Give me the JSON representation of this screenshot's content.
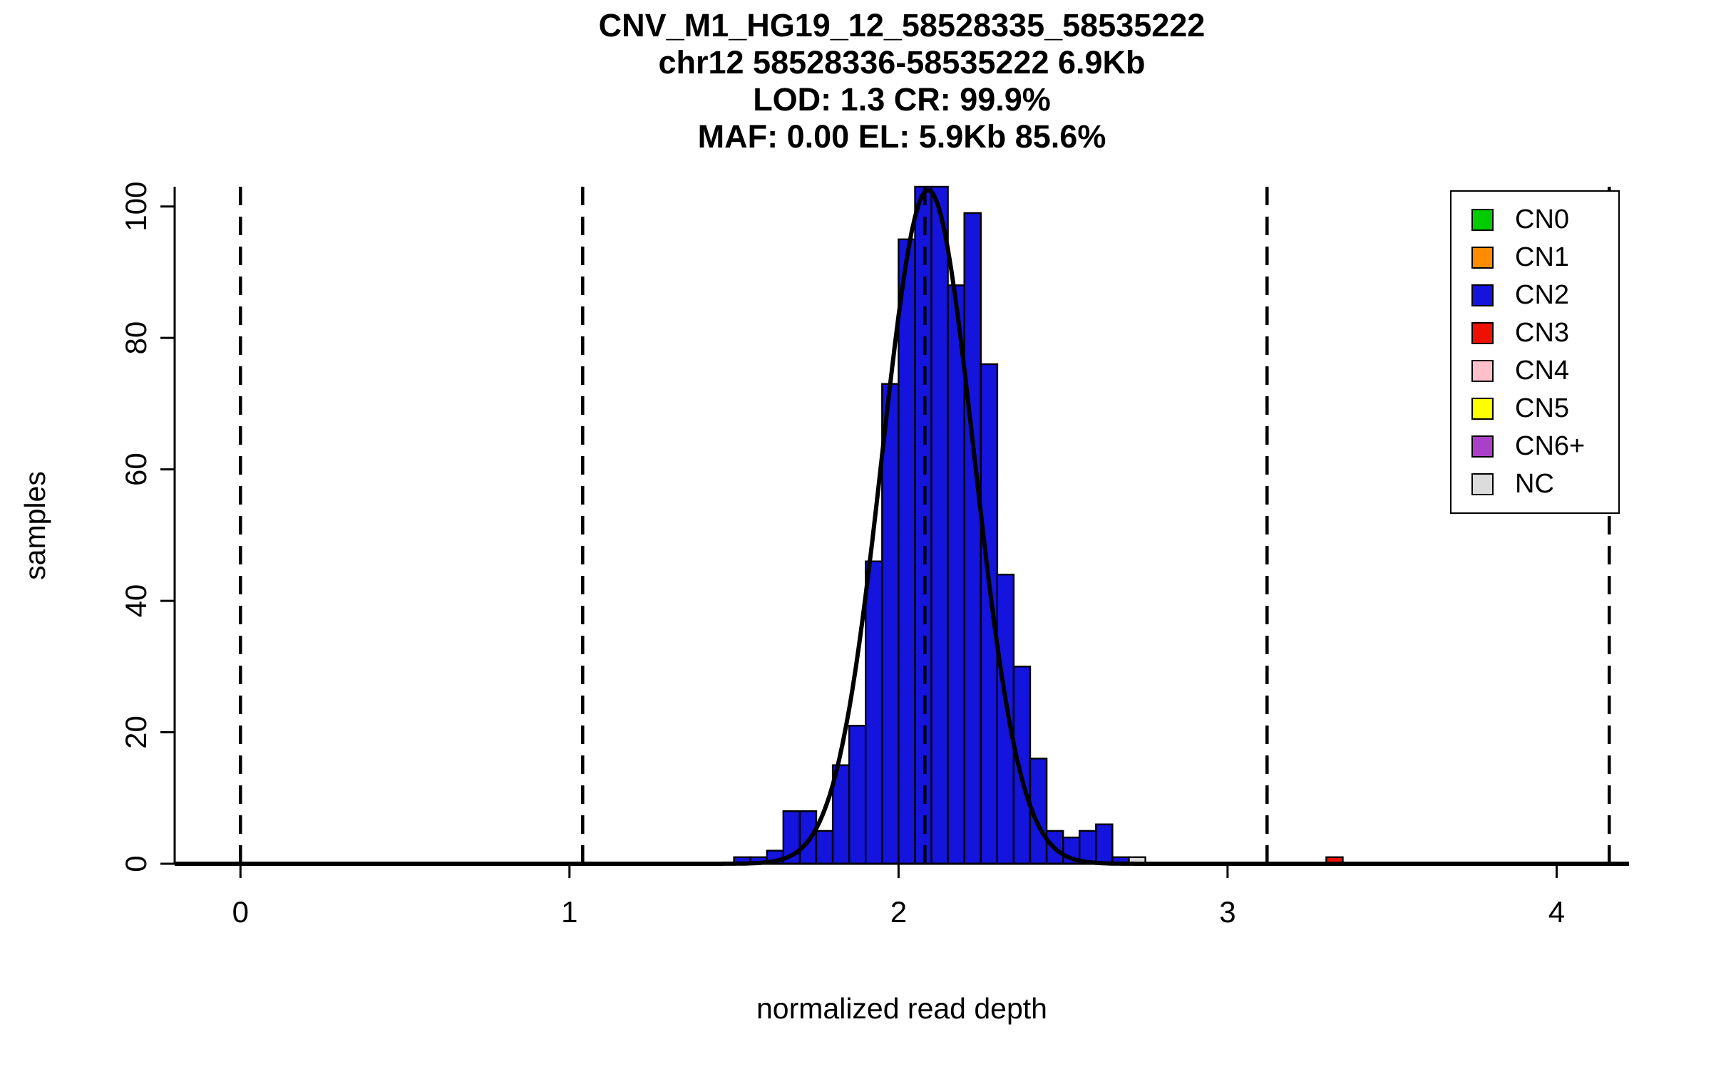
{
  "chart_data": {
    "type": "bar",
    "variant": "histogram-with-gaussian-fit",
    "title_lines": [
      "CNV_M1_HG19_12_58528335_58535222",
      "chr12 58528336-58535222 6.9Kb",
      "LOD: 1.3 CR: 99.9%",
      "MAF: 0.00 EL: 5.9Kb 85.6%"
    ],
    "xlabel": "normalized read depth",
    "ylabel": "samples",
    "xlim": [
      -0.2,
      4.22
    ],
    "ylim": [
      0,
      103
    ],
    "x_ticks": [
      0,
      1,
      2,
      3,
      4
    ],
    "y_ticks": [
      0,
      20,
      40,
      60,
      80,
      100
    ],
    "grid": false,
    "legend_position": "top-right",
    "bin_width": 0.05,
    "bars": [
      {
        "x": 1.5,
        "count": 1,
        "cn": "CN2"
      },
      {
        "x": 1.55,
        "count": 1,
        "cn": "CN2"
      },
      {
        "x": 1.6,
        "count": 2,
        "cn": "CN2"
      },
      {
        "x": 1.65,
        "count": 8,
        "cn": "CN2"
      },
      {
        "x": 1.7,
        "count": 8,
        "cn": "CN2"
      },
      {
        "x": 1.75,
        "count": 5,
        "cn": "CN2"
      },
      {
        "x": 1.8,
        "count": 15,
        "cn": "CN2"
      },
      {
        "x": 1.85,
        "count": 21,
        "cn": "CN2"
      },
      {
        "x": 1.9,
        "count": 46,
        "cn": "CN2"
      },
      {
        "x": 1.95,
        "count": 73,
        "cn": "CN2"
      },
      {
        "x": 2.0,
        "count": 95,
        "cn": "CN2"
      },
      {
        "x": 2.05,
        "count": 103,
        "cn": "CN2"
      },
      {
        "x": 2.1,
        "count": 103,
        "cn": "CN2"
      },
      {
        "x": 2.15,
        "count": 88,
        "cn": "CN2"
      },
      {
        "x": 2.2,
        "count": 99,
        "cn": "CN2"
      },
      {
        "x": 2.25,
        "count": 76,
        "cn": "CN2"
      },
      {
        "x": 2.3,
        "count": 44,
        "cn": "CN2"
      },
      {
        "x": 2.35,
        "count": 30,
        "cn": "CN2"
      },
      {
        "x": 2.4,
        "count": 16,
        "cn": "CN2"
      },
      {
        "x": 2.45,
        "count": 5,
        "cn": "CN2"
      },
      {
        "x": 2.5,
        "count": 4,
        "cn": "CN2"
      },
      {
        "x": 2.55,
        "count": 5,
        "cn": "CN2"
      },
      {
        "x": 2.6,
        "count": 6,
        "cn": "CN2"
      },
      {
        "x": 2.65,
        "count": 1,
        "cn": "CN2"
      },
      {
        "x": 2.7,
        "count": 1,
        "cn": "NC"
      },
      {
        "x": 3.3,
        "count": 1,
        "cn": "CN3"
      }
    ],
    "dashed_lines_x": [
      0,
      1.04,
      2.08,
      3.12,
      4.16
    ],
    "fit_curve": {
      "type": "gaussian",
      "mean": 2.09,
      "sd": 0.14,
      "peak": 102.5
    },
    "legend": [
      {
        "label": "CN0",
        "color": "#00CC00"
      },
      {
        "label": "CN1",
        "color": "#FF8C00"
      },
      {
        "label": "CN2",
        "color": "#1414DC"
      },
      {
        "label": "CN3",
        "color": "#EE1100"
      },
      {
        "label": "CN4",
        "color": "#FFC0CB"
      },
      {
        "label": "CN5",
        "color": "#FFFF00"
      },
      {
        "label": "CN6+",
        "color": "#AA3FC8"
      },
      {
        "label": "NC",
        "color": "#DCDCDC"
      }
    ],
    "colors": {
      "axis": "#000000",
      "curve": "#000000",
      "bar_stroke": "#000000",
      "background": "#FFFFFF"
    }
  }
}
